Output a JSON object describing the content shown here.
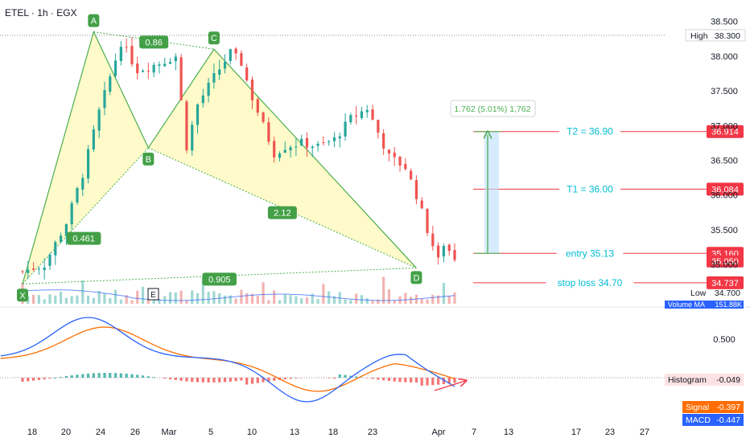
{
  "header": {
    "symbol_title": "ETEL · 1h · EGX"
  },
  "colors": {
    "up": "#26a69a",
    "down": "#ef5350",
    "pattern_fill": "#fff59d",
    "pattern_line": "#4caf50",
    "target": "#00bcd4",
    "red_line": "#f23645",
    "macd": "#2962ff",
    "signal": "#ff6d00",
    "grid_dotted": "#787b86"
  },
  "chart_data": [
    {
      "type": "candlestick",
      "title": "ETEL · 1h · EGX",
      "ylim": [
        34.55,
        38.6
      ],
      "y_ticks": [
        "38.500",
        "38.000",
        "37.500",
        "37.000",
        "36.500",
        "36.000",
        "35.500",
        "35.000"
      ],
      "x_ticks": [
        "18",
        "20",
        "24",
        "26",
        "Mar",
        "5",
        "10",
        "13",
        "18",
        "23",
        "Apr",
        "7",
        "13",
        "17",
        "23",
        "27"
      ],
      "high": 38.3,
      "low": 34.7,
      "close_path": [
        [
          0,
          34.9
        ],
        [
          4,
          35.0
        ],
        [
          8,
          35.6
        ],
        [
          11,
          36.3
        ],
        [
          14,
          37.2
        ],
        [
          16,
          37.7
        ],
        [
          18,
          38.2
        ],
        [
          21,
          37.8
        ],
        [
          25,
          37.9
        ],
        [
          28,
          38.0
        ],
        [
          30,
          36.7
        ],
        [
          32,
          37.3
        ],
        [
          35,
          37.7
        ],
        [
          38,
          38.05
        ],
        [
          40,
          37.9
        ],
        [
          42,
          37.4
        ],
        [
          44,
          37.0
        ],
        [
          46,
          36.6
        ],
        [
          48,
          36.7
        ],
        [
          51,
          36.75
        ],
        [
          54,
          36.7
        ],
        [
          57,
          36.8
        ],
        [
          60,
          37.1
        ],
        [
          63,
          37.25
        ],
        [
          65,
          36.9
        ],
        [
          67,
          36.55
        ],
        [
          70,
          36.4
        ],
        [
          72,
          36.0
        ],
        [
          74,
          35.5
        ],
        [
          76,
          35.05
        ],
        [
          77,
          35.3
        ],
        [
          79,
          35.1
        ]
      ],
      "harmonic_pattern": {
        "points": [
          {
            "label": "X",
            "value": 34.72
          },
          {
            "label": "A",
            "value": 38.35
          },
          {
            "label": "B",
            "value": 36.68
          },
          {
            "label": "C",
            "value": 38.1
          },
          {
            "label": "D",
            "value": 34.95
          }
        ],
        "ratios": [
          "0.86",
          "0.461",
          "2.12",
          "0.905"
        ]
      },
      "annotations": [
        {
          "label": "T2 = 36.90",
          "price_tag": "36.914"
        },
        {
          "label": "T1 = 36.00",
          "price_tag": "36.084"
        },
        {
          "label": "entry 35.13",
          "price_tag": "35.160"
        },
        {
          "label": "stop loss 34.70",
          "price_tag": "34.737"
        }
      ],
      "last_price_tag": "35.050",
      "measure_label": "1.762 (5.01%) 1,762",
      "high_label": "High",
      "high_value": "38.300",
      "low_label": "Low",
      "low_value": "34.700",
      "event_marker": "E",
      "volume_label": "Volume MA",
      "volume_value": "151.88K"
    },
    {
      "type": "macd",
      "y_ticks": [
        "0.500"
      ],
      "histogram_label": "Histogram",
      "histogram_value": "-0.049",
      "signal_label": "Signal",
      "signal_value": "-0.397",
      "macd_label": "MACD",
      "macd_value": "-0.447"
    }
  ]
}
